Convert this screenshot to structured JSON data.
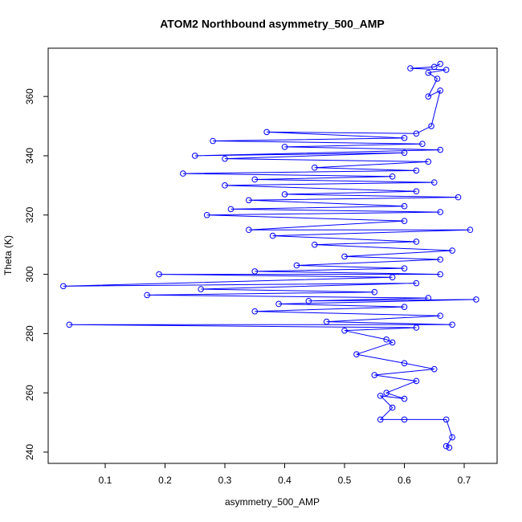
{
  "chart_data": {
    "type": "line",
    "markers": "circle",
    "title": "ATOM2 Northbound asymmetry_500_AMP",
    "xlabel": "asymmetry_500_AMP",
    "ylabel": "Theta (K)",
    "color": "#0000ff",
    "xlim": [
      0.0047,
      0.755
    ],
    "ylim": [
      236.2,
      376.3
    ],
    "xticks": [
      0.1,
      0.2,
      0.3,
      0.4,
      0.5,
      0.6,
      0.7
    ],
    "yticks": [
      240,
      260,
      280,
      300,
      320,
      340,
      360
    ],
    "x": [
      0.66,
      0.65,
      0.61,
      0.67,
      0.64,
      0.655,
      0.64,
      0.66,
      0.645,
      0.62,
      0.37,
      0.6,
      0.28,
      0.63,
      0.4,
      0.66,
      0.25,
      0.6,
      0.3,
      0.64,
      0.45,
      0.62,
      0.23,
      0.58,
      0.35,
      0.65,
      0.3,
      0.62,
      0.4,
      0.69,
      0.34,
      0.6,
      0.31,
      0.66,
      0.27,
      0.6,
      0.34,
      0.71,
      0.38,
      0.62,
      0.45,
      0.68,
      0.5,
      0.66,
      0.42,
      0.6,
      0.35,
      0.66,
      0.19,
      0.58,
      0.03,
      0.62,
      0.26,
      0.55,
      0.17,
      0.64,
      0.44,
      0.72,
      0.39,
      0.6,
      0.35,
      0.66,
      0.47,
      0.68,
      0.04,
      0.62,
      0.5,
      0.57,
      0.58,
      0.52,
      0.6,
      0.65,
      0.55,
      0.62,
      0.57,
      0.6,
      0.56,
      0.58,
      0.56,
      0.6,
      0.67,
      0.68,
      0.67,
      0.675
    ],
    "values": [
      371,
      370,
      369.5,
      369,
      368,
      366,
      360,
      362,
      350,
      347.5,
      348,
      346,
      345,
      344,
      343,
      342,
      340,
      341,
      339,
      338,
      336,
      335,
      334,
      333,
      332,
      331,
      330,
      328,
      327,
      326,
      325,
      323,
      322,
      321,
      320,
      318,
      315,
      315,
      313,
      311,
      310,
      308,
      306,
      305,
      303,
      302,
      301,
      300,
      300,
      299,
      296,
      297,
      295,
      294,
      293,
      292,
      291,
      291.5,
      290,
      289,
      287.5,
      286,
      284,
      283,
      283,
      282,
      281,
      278,
      277,
      273,
      270,
      268,
      266,
      264,
      260,
      258,
      259,
      255,
      251,
      251,
      251,
      245,
      242,
      241.5
    ]
  }
}
